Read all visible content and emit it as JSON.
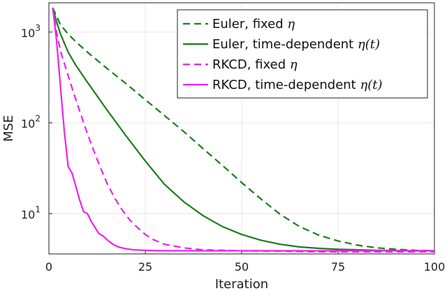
{
  "chart_data": {
    "type": "line",
    "title": "",
    "xlabel": "Iteration",
    "ylabel": "MSE",
    "xlim": [
      0,
      100
    ],
    "ylim": [
      3.6,
      2100
    ],
    "yscale": "log",
    "grid": true,
    "legend_position": "top-right",
    "xticks": [
      0,
      25,
      50,
      75,
      100
    ],
    "yticks": [
      {
        "value": 10,
        "base": "10",
        "exp": "1"
      },
      {
        "value": 100,
        "base": "10",
        "exp": "2"
      },
      {
        "value": 1000,
        "base": "10",
        "exp": "3"
      }
    ],
    "series": [
      {
        "name": "Euler, fixed ",
        "name_math": "η",
        "color": "#1a7f1a",
        "dash": "dashed",
        "x": [
          1,
          2,
          3,
          5,
          7,
          10,
          15,
          20,
          25,
          30,
          35,
          40,
          45,
          50,
          55,
          60,
          65,
          70,
          75,
          80,
          85,
          90,
          95,
          100
        ],
        "y": [
          1850,
          1500,
          1200,
          950,
          780,
          600,
          400,
          270,
          180,
          120,
          80,
          52,
          34,
          22,
          14.5,
          9.8,
          7.2,
          5.8,
          5.0,
          4.5,
          4.2,
          4.05,
          3.95,
          3.9
        ]
      },
      {
        "name": "Euler, time-dependent ",
        "name_math": "η(t)",
        "color": "#1a7f1a",
        "dash": "solid",
        "x": [
          1,
          2,
          3,
          5,
          7,
          10,
          15,
          20,
          25,
          30,
          35,
          40,
          45,
          50,
          55,
          60,
          65,
          70,
          75,
          80,
          85,
          90,
          95,
          100
        ],
        "y": [
          1850,
          1300,
          950,
          600,
          430,
          280,
          140,
          72,
          38,
          21,
          13.5,
          9.5,
          7.2,
          5.9,
          5.1,
          4.6,
          4.3,
          4.15,
          4.05,
          4.0,
          3.95,
          3.92,
          3.9,
          3.9
        ]
      },
      {
        "name": "RKCD, fixed ",
        "name_math": "η",
        "color": "#ee22ee",
        "dash": "dashed",
        "x": [
          1,
          2,
          3,
          5,
          7,
          9,
          11,
          13,
          15,
          17,
          19,
          21,
          23,
          25,
          27,
          30,
          35,
          40,
          50,
          60,
          70,
          80,
          90,
          100
        ],
        "y": [
          1850,
          1000,
          620,
          330,
          180,
          100,
          58,
          35,
          22,
          15,
          11,
          8.5,
          7.0,
          5.9,
          5.2,
          4.6,
          4.2,
          4.0,
          3.9,
          3.85,
          3.8,
          3.78,
          3.78,
          3.8
        ]
      },
      {
        "name": "RKCD, time-dependent ",
        "name_math": "η(t)",
        "color": "#ee22ee",
        "dash": "solid",
        "x": [
          1,
          2,
          3,
          4,
          5,
          6,
          7,
          8,
          9,
          10,
          11,
          12,
          13,
          14,
          15,
          16,
          17,
          18,
          20,
          22,
          25,
          30,
          40,
          50,
          60,
          75,
          100
        ],
        "y": [
          1850,
          800,
          250,
          80,
          33,
          28,
          20,
          14,
          10.5,
          10,
          8.2,
          7.0,
          6.0,
          5.7,
          5.2,
          4.8,
          4.5,
          4.3,
          4.1,
          4.0,
          3.95,
          3.9,
          3.9,
          3.9,
          3.9,
          3.9,
          3.9
        ]
      }
    ]
  }
}
